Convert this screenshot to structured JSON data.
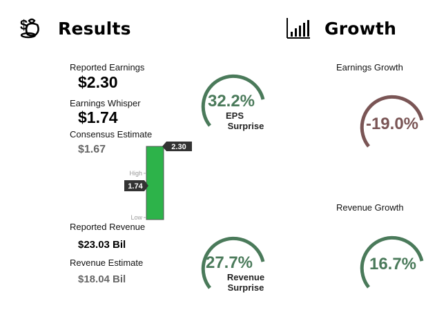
{
  "results": {
    "title": "Results",
    "icon": "money-bag-icon",
    "reported_earnings_label": "Reported Earnings",
    "reported_earnings_value": "$2.30",
    "earnings_whisper_label": "Earnings Whisper",
    "earnings_whisper_value": "$1.74",
    "consensus_estimate_label": "Consensus Estimate",
    "consensus_estimate_value": "$1.67",
    "reported_revenue_label": "Reported Revenue",
    "reported_revenue_value": "$23.03 Bil",
    "revenue_estimate_label": "Revenue Estimate",
    "revenue_estimate_value": "$18.04 Bil"
  },
  "range_bar": {
    "high_label": "High",
    "low_label": "Low",
    "top_tag": "2.30",
    "mid_tag": "1.74",
    "bar_color": "#2db34a"
  },
  "eps_surprise": {
    "value": "32.2%",
    "label_line1": "EPS",
    "label_line2": "Surprise",
    "color": "#4a7a5a"
  },
  "revenue_surprise": {
    "value": "27.7%",
    "label_line1": "Revenue",
    "label_line2": "Surprise",
    "color": "#4a7a5a"
  },
  "growth": {
    "title": "Growth",
    "icon": "bar-chart-icon",
    "earnings_growth_label": "Earnings Growth",
    "earnings_growth_value": "-19.0%",
    "earnings_growth_color": "#7a5555",
    "revenue_growth_label": "Revenue Growth",
    "revenue_growth_value": "16.7%",
    "revenue_growth_color": "#4a7a5a"
  }
}
